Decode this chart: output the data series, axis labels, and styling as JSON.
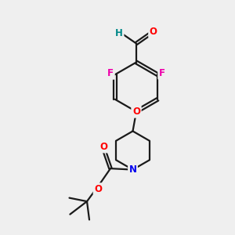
{
  "bg_color": "#efefef",
  "bond_color": "#1a1a1a",
  "bond_lw": 1.6,
  "atom_colors": {
    "O": "#ff0000",
    "F": "#ee00aa",
    "N": "#0000ee",
    "H": "#008888",
    "C": "#1a1a1a"
  },
  "font_size_atom": 8.5,
  "fig_bg": "#efefef"
}
